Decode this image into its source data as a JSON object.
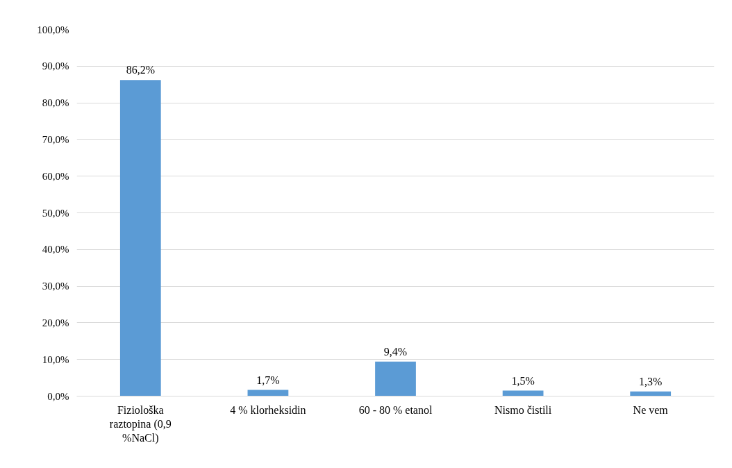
{
  "chart_data": {
    "type": "bar",
    "categories": [
      "Fiziološka raztopina (0,9 %NaCl)",
      "4 % klorheksidin",
      "60 - 80 % etanol",
      "Nismo čistili",
      "Ne vem"
    ],
    "values": [
      86.2,
      1.7,
      9.4,
      1.5,
      1.3
    ],
    "value_labels": [
      "86,2%",
      "1,7%",
      "9,4%",
      "1,5%",
      "1,3%"
    ],
    "color": "#5b9bd5",
    "ylim": [
      0,
      100
    ],
    "yticks": [
      {
        "value": 0,
        "label": "0,0%"
      },
      {
        "value": 10,
        "label": "10,0%"
      },
      {
        "value": 20,
        "label": "20,0%"
      },
      {
        "value": 30,
        "label": "30,0%"
      },
      {
        "value": 40,
        "label": "40,0%"
      },
      {
        "value": 50,
        "label": "50,0%"
      },
      {
        "value": 60,
        "label": "60,0%"
      },
      {
        "value": 70,
        "label": "70,0%"
      },
      {
        "value": 80,
        "label": "80,0%"
      },
      {
        "value": 90,
        "label": "90,0%"
      },
      {
        "value": 100,
        "label": "100,0%"
      }
    ],
    "grid": "y"
  }
}
